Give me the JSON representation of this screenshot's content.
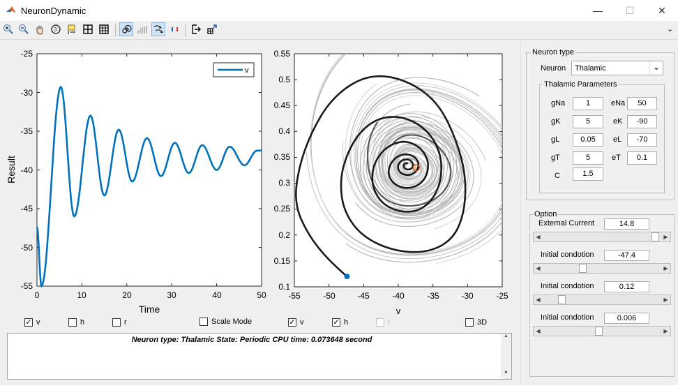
{
  "window": {
    "title": "NeuronDynamic",
    "minimize": "—",
    "maximize": "☐",
    "close": "✕"
  },
  "toolbar": {
    "menu_arrow": "⌄"
  },
  "plot_left": {
    "legend": "v",
    "xlabel": "Time",
    "ylabel": "Result",
    "xticks": [
      "0",
      "10",
      "20",
      "30",
      "40",
      "50"
    ],
    "yticks": [
      "-25",
      "-30",
      "-35",
      "-40",
      "-45",
      "-50",
      "-55"
    ]
  },
  "plot_right": {
    "xlabel": "v",
    "ylabel": "h",
    "xticks": [
      "-55",
      "-50",
      "-45",
      "-40",
      "-35",
      "-30",
      "-25"
    ],
    "yticks": [
      "0.55",
      "0.5",
      "0.45",
      "0.4",
      "0.35",
      "0.3",
      "0.25",
      "0.2",
      "0.15",
      "0.1"
    ]
  },
  "checkboxes": {
    "v1": {
      "label": "v",
      "checked": "✓"
    },
    "h1": {
      "label": "h",
      "checked": ""
    },
    "r1": {
      "label": "r",
      "checked": ""
    },
    "scale": {
      "label": "Scale Mode",
      "checked": ""
    },
    "v2": {
      "label": "v",
      "checked": "✓"
    },
    "h2": {
      "label": "h",
      "checked": "✓"
    },
    "r2": {
      "label": "r",
      "checked": ""
    },
    "d3": {
      "label": "3D",
      "checked": ""
    }
  },
  "status": {
    "text": "Neuron type: Thalamic   State: Periodic    CPU time: 0.073648 second",
    "up": "▲",
    "down": "▼"
  },
  "neuron_type": {
    "legend": "Neuron type",
    "neuron_label": "Neuron",
    "neuron_value": "Thalamic",
    "dropdown_arrow": "⌄",
    "params_legend": "Thalamic Parameters",
    "params": {
      "gNa": {
        "label": "gNa",
        "value": "1"
      },
      "eNa": {
        "label": "eNa",
        "value": "50"
      },
      "gK": {
        "label": "gK",
        "value": "5"
      },
      "eK": {
        "label": "eK",
        "value": "-90"
      },
      "gL": {
        "label": "gL",
        "value": "0.05"
      },
      "eL": {
        "label": "eL",
        "value": "-70"
      },
      "gT": {
        "label": "gT",
        "value": "5"
      },
      "eT": {
        "label": "eT",
        "value": "0.1"
      },
      "C": {
        "label": "C",
        "value": "1.5"
      }
    }
  },
  "option": {
    "legend": "Option",
    "sliders": [
      {
        "label": "External Current",
        "value": "14.8",
        "level": 0.98
      },
      {
        "label": "Initial condotion",
        "value": "-47.4",
        "level": 0.33
      },
      {
        "label": "Initial condotion",
        "value": "0.12",
        "level": 0.14
      },
      {
        "label": "Initial condotion",
        "value": "0.006",
        "level": 0.47
      }
    ],
    "left_arrow": "◀",
    "right_arrow": "▶"
  },
  "colors": {
    "trace": "#0072bd",
    "dark": "#1a1a1a",
    "gray": "#b8b8b8",
    "red": "#d9541a"
  }
}
